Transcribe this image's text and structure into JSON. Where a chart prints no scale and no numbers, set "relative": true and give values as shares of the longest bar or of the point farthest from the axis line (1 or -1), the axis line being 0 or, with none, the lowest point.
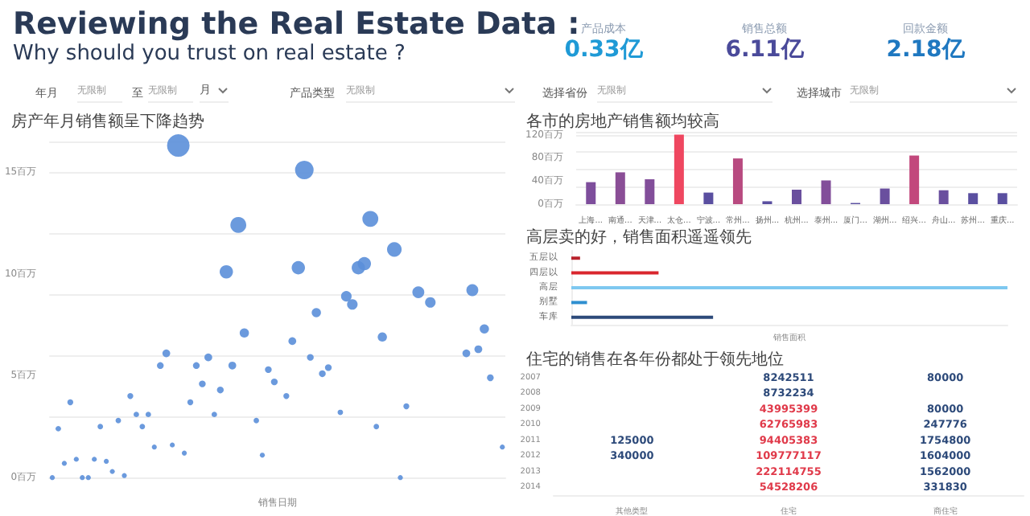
{
  "chart_data": [
    {
      "type": "other",
      "title": "Reviewing the Real Estate Data :",
      "subtitle": "Why should you trust on  real estate ?",
      "annotations": [
        "产品成本",
        "0.33亿",
        "销售总额",
        "6.11亿",
        "回款金额",
        "2.18亿",
        "年月",
        "无限制",
        "至",
        "无限制",
        "月",
        "产品类型",
        "无限制",
        "选择省份",
        "无限制",
        "选择城市",
        "无限制"
      ]
    },
    {
      "type": "bubble",
      "title": "房产年月销售额呈下降趋势",
      "xlabel": "销售日期",
      "color": "#5b8fd9",
      "grid": "y",
      "ylim": [
        0,
        16.5
      ],
      "yticks": [
        {
          "value": 0,
          "label": "0百万"
        },
        {
          "value": 5,
          "label": "5百万"
        },
        {
          "value": 10,
          "label": "10百万"
        },
        {
          "value": 15,
          "label": "15百万"
        }
      ],
      "categories": [
        null,
        null,
        null,
        null,
        null,
        null,
        null,
        null,
        null,
        null,
        null,
        null,
        null,
        null,
        null,
        null,
        null,
        null,
        null,
        null,
        null,
        null,
        null,
        null,
        null,
        null,
        null,
        null,
        null,
        null,
        null,
        null,
        null,
        null,
        null,
        null,
        null,
        null,
        null,
        null,
        null,
        null,
        null,
        null,
        null,
        null,
        null,
        null,
        null,
        null,
        null,
        null,
        null,
        null,
        null,
        null,
        null,
        null,
        null,
        null,
        null,
        null,
        null,
        null,
        null,
        null,
        null,
        null,
        null,
        null,
        null,
        null,
        null,
        null,
        null,
        null
      ],
      "values": [
        0,
        2.4,
        0.7,
        3.7,
        0.9,
        0,
        0,
        0.9,
        2.5,
        0.8,
        0.3,
        2.8,
        0.1,
        4.0,
        3.1,
        2.5,
        3.1,
        1.5,
        5.5,
        6.1,
        1.6,
        16.3,
        1.2,
        3.7,
        5.5,
        4.6,
        5.9,
        3.1,
        4.3,
        10.1,
        5.5,
        12.4,
        7.1,
        null,
        2.8,
        1.1,
        5.3,
        4.7,
        null,
        4.0,
        6.7,
        10.3,
        15.1,
        5.9,
        8.1,
        5.1,
        5.4,
        null,
        3.2,
        8.9,
        8.5,
        10.3,
        10.5,
        12.7,
        2.5,
        6.9,
        null,
        11.2,
        0,
        3.5,
        null,
        9.1,
        null,
        8.6,
        null,
        null,
        null,
        null,
        null,
        6.1,
        9.2,
        6.3,
        7.3,
        4.9,
        null,
        1.5
      ],
      "sizes": [
        0.05,
        0.06,
        0.05,
        0.07,
        0.05,
        0.05,
        0.05,
        0.05,
        0.06,
        0.05,
        0.05,
        0.06,
        0.05,
        0.07,
        0.06,
        0.06,
        0.06,
        0.05,
        0.09,
        0.12,
        0.05,
        1,
        0.05,
        0.07,
        0.09,
        0.09,
        0.12,
        0.06,
        0.09,
        0.35,
        0.12,
        0.5,
        0.17,
        null,
        0.06,
        0.05,
        0.09,
        0.09,
        null,
        0.07,
        0.12,
        0.35,
        0.68,
        0.09,
        0.17,
        0.09,
        0.09,
        null,
        0.06,
        0.22,
        0.22,
        0.35,
        0.35,
        0.5,
        0.06,
        0.17,
        null,
        0.42,
        0.05,
        0.07,
        null,
        0.28,
        null,
        0.22,
        null,
        null,
        null,
        null,
        null,
        0.12,
        0.28,
        0.12,
        0.17,
        0.09,
        null,
        0.05
      ]
    },
    {
      "type": "bar",
      "title": "各市的房地产销售额均较高",
      "grid": "y",
      "ylim": [
        0,
        125
      ],
      "yticks": [
        {
          "value": 0,
          "label": "0百万"
        },
        {
          "value": 40,
          "label": "40百万"
        },
        {
          "value": 80,
          "label": "80百万"
        },
        {
          "value": 120,
          "label": "120百万"
        }
      ],
      "categories": [
        "上海...",
        "南通...",
        "天津...",
        "太仓...",
        "宁波...",
        "常州...",
        "扬州...",
        "杭州...",
        "泰州...",
        "厦门...",
        "湖州...",
        "绍兴...",
        "舟山...",
        "苏州...",
        "重庆..."
      ],
      "values": [
        38,
        55,
        43,
        120,
        20,
        79,
        5,
        25,
        41,
        2,
        27,
        84,
        24,
        19,
        19
      ],
      "colors": [
        "#7e4e9c",
        "#8a4e96",
        "#824e9a",
        "#ef4760",
        "#5a4fa0",
        "#b84a80",
        "#5a4fa0",
        "#6a4f9e",
        "#824e9a",
        "#5a4fa0",
        "#6a4f9e",
        "#c2487c",
        "#6a4f9e",
        "#5a4fa0",
        "#5a4fa0"
      ]
    },
    {
      "type": "bar",
      "orientation": "horizontal",
      "relative": true,
      "title": "高层卖的好，销售面积遥遥领先",
      "xlabel": "销售面积",
      "categories": [
        "五层以",
        "四层以",
        "高层",
        "别墅",
        "车库"
      ],
      "values": [
        0.02,
        0.2,
        1,
        0.036,
        0.325
      ],
      "colors": [
        "#b8222c",
        "#d9262e",
        "#7ec8f0",
        "#2f8fd0",
        "#2d4a7a"
      ]
    },
    {
      "type": "heatmap",
      "title": "住宅的销售在各年份都处于领先地位",
      "data_labels": true,
      "categories": [
        "其他类型",
        "住宅",
        "商住宅"
      ],
      "y_categories": [
        "2007",
        "2008",
        "2009",
        "2010",
        "2011",
        "2012",
        "2013",
        "2014"
      ],
      "cells": [
        [
          null,
          8242511,
          80000
        ],
        [
          null,
          8732234,
          null
        ],
        [
          null,
          43995399,
          80000
        ],
        [
          null,
          62765983,
          247776
        ],
        [
          125000,
          94405383,
          1754800
        ],
        [
          340000,
          109777117,
          1604000
        ],
        [
          null,
          222114755,
          1562000
        ],
        [
          null,
          54528206,
          331830
        ]
      ]
    }
  ]
}
